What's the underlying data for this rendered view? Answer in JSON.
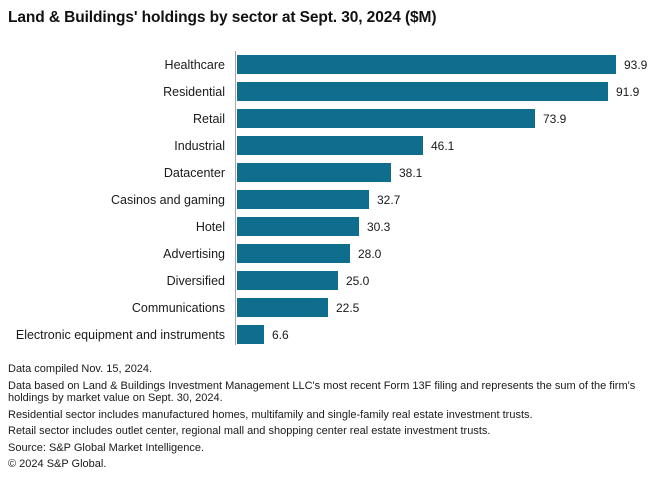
{
  "title": "Land & Buildings' holdings by sector at Sept. 30, 2024 ($M)",
  "chart_data": {
    "type": "bar",
    "orientation": "horizontal",
    "title": "Land & Buildings' holdings by sector at Sept. 30, 2024 ($M)",
    "categories": [
      "Healthcare",
      "Residential",
      "Retail",
      "Industrial",
      "Datacenter",
      "Casinos and gaming",
      "Hotel",
      "Advertising",
      "Diversified",
      "Communications",
      "Electronic equipment and instruments"
    ],
    "values": [
      93.9,
      91.9,
      73.9,
      46.1,
      38.1,
      32.7,
      30.3,
      28.0,
      25.0,
      22.5,
      6.6
    ],
    "value_labels": [
      "93.9",
      "91.9",
      "73.9",
      "46.1",
      "38.1",
      "32.7",
      "30.3",
      "28.0",
      "25.0",
      "22.5",
      "6.6"
    ],
    "xlabel": "",
    "ylabel": "",
    "xlim": [
      0,
      94
    ],
    "grid": false,
    "legend": false,
    "data_labels": true,
    "bar_color": "#0f6d8d",
    "axis_line_color": "#a6a6a6"
  },
  "footer": {
    "lines": [
      "Data compiled Nov. 15, 2024.",
      "Data based on Land & Buildings Investment Management LLC's most recent Form 13F filing and represents the sum of the firm's holdings by market value on Sept. 30, 2024.",
      "Residential sector includes manufactured homes, multifamily and single-family real estate investment trusts.",
      "Retail sector includes outlet center, regional mall and shopping center real estate investment trusts.",
      "Source: S&P Global Market Intelligence.",
      "© 2024 S&P Global."
    ]
  }
}
